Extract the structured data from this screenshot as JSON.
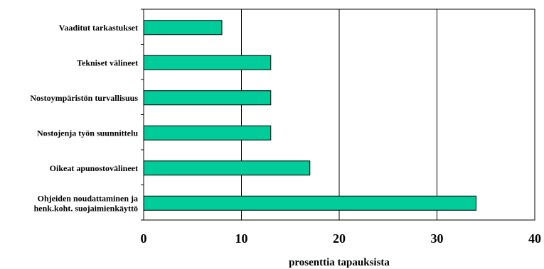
{
  "chart_data": {
    "type": "bar",
    "orientation": "horizontal",
    "categories": [
      [
        "Vaaditut tarkastukset"
      ],
      [
        "Tekniset välineet"
      ],
      [
        "Nostoympäristön turvallisuus"
      ],
      [
        "Nostojenja työn suunnittelu"
      ],
      [
        "Oikeat apunostovälineet"
      ],
      [
        "Ohjeiden noudattaminen ja",
        "henk.koht. suojaimienkäyttö"
      ]
    ],
    "values": [
      8,
      13,
      13,
      13,
      17,
      34
    ],
    "xlim": [
      0,
      40
    ],
    "xticks": [
      "0",
      "10",
      "20",
      "30",
      "40"
    ],
    "xlabel": "prosenttia tapauksista",
    "grid": "vertical",
    "colors": {
      "bar": "#00CC99",
      "bar_outline": "#000000",
      "grid": "#000000"
    }
  }
}
